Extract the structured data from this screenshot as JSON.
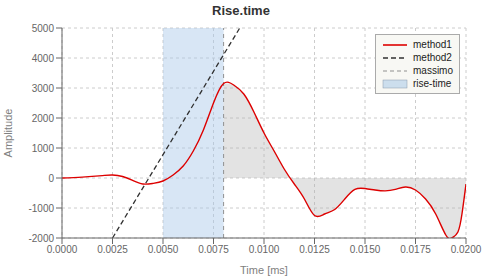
{
  "chart_data": {
    "type": "line",
    "title": "Rise.time",
    "x_label": "Time [ms]",
    "y_label": "Amplitude",
    "xlim": [
      0.0,
      0.02
    ],
    "ylim": [
      -2000,
      5000
    ],
    "xticks": [
      {
        "value": 0,
        "label": "0.0000"
      },
      0.0025,
      {
        "value": 0.005,
        "label": "0.0050"
      },
      0.0075,
      {
        "value": 0.01,
        "label": "0.0100"
      },
      0.0125,
      {
        "value": 0.015,
        "label": "0.0150"
      },
      0.0175,
      {
        "value": 0.02,
        "label": "0.0200"
      }
    ],
    "yticks": [
      -2000,
      -1000,
      0,
      1000,
      2000,
      3000,
      4000,
      5000
    ],
    "grid": true,
    "legend": "upper right",
    "series": [
      {
        "name": "method1",
        "color": "#dd0000",
        "x": [
          0.0,
          0.001,
          0.002,
          0.0025,
          0.003,
          0.0035,
          0.004,
          0.0045,
          0.005,
          0.0055,
          0.006,
          0.0065,
          0.007,
          0.0075,
          0.008,
          0.0085,
          0.009,
          0.0095,
          0.01,
          0.0105,
          0.011,
          0.0115,
          0.012,
          0.0125,
          0.013,
          0.0135,
          0.014,
          0.0145,
          0.015,
          0.0155,
          0.016,
          0.0165,
          0.017,
          0.0175,
          0.018,
          0.0185,
          0.019,
          0.0193,
          0.0196,
          0.0198,
          0.02
        ],
        "values": [
          0,
          30,
          80,
          100,
          50,
          -80,
          -200,
          -180,
          -100,
          100,
          400,
          900,
          1600,
          2500,
          3150,
          3100,
          2800,
          2200,
          1500,
          900,
          300,
          -200,
          -700,
          -1250,
          -1200,
          -1050,
          -700,
          -380,
          -350,
          -400,
          -430,
          -380,
          -300,
          -400,
          -700,
          -1200,
          -1900,
          -2000,
          -1800,
          -1200,
          -200
        ]
      },
      {
        "name": "method2",
        "color": "#303030",
        "line_style": "dashed",
        "x": [
          0.0025,
          0.0088
        ],
        "values": [
          -2000,
          5000
        ]
      },
      {
        "name": "massimo",
        "type": "vline",
        "color": "#909090",
        "line_style": "dashed",
        "x": [
          0.008
        ]
      },
      {
        "name": "rise-time",
        "type": "span",
        "color": "#a8c8e8",
        "x": [
          0.005,
          0.008
        ]
      }
    ],
    "fill": {
      "color": "#b0b0b0",
      "x": [
        0.008,
        0.02
      ],
      "base": 0
    }
  }
}
